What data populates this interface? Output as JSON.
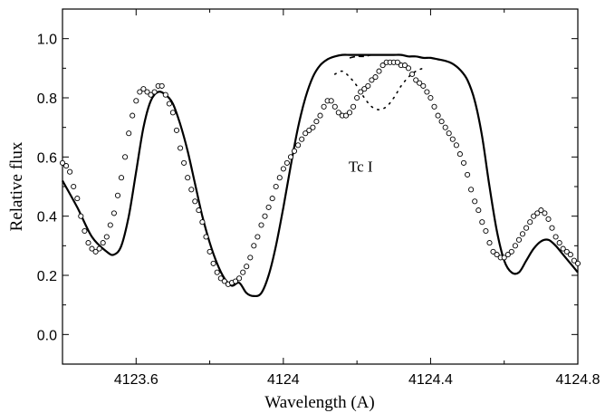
{
  "chart_data": {
    "type": "line",
    "xlabel": "Wavelength (A)",
    "ylabel": "Relative flux",
    "xlim": [
      4123.4,
      4124.8
    ],
    "ylim": [
      -0.1,
      1.1
    ],
    "x_ticks": [
      4123.6,
      4124,
      4124.4,
      4124.8
    ],
    "x_tick_labels": [
      "4123.6",
      "4124",
      "4124.4",
      "4124.8"
    ],
    "y_ticks": [
      0.0,
      0.2,
      0.4,
      0.6,
      0.8,
      1.0
    ],
    "y_tick_labels": [
      "0.0",
      "0.2",
      "0.4",
      "0.6",
      "0.8",
      "1.0"
    ],
    "grid": false,
    "annotations": [
      {
        "text": "Tc I",
        "x": 4124.21,
        "y": 0.55
      }
    ],
    "series": [
      {
        "style": "solid",
        "x": [
          4123.4,
          4123.44,
          4123.48,
          4123.52,
          4123.54,
          4123.56,
          4123.58,
          4123.6,
          4123.62,
          4123.64,
          4123.66,
          4123.68,
          4123.7,
          4123.72,
          4123.74,
          4123.76,
          4123.78,
          4123.8,
          4123.82,
          4123.84,
          4123.86,
          4123.88,
          4123.9,
          4123.92,
          4123.94,
          4123.96,
          4123.98,
          4124.0,
          4124.02,
          4124.04,
          4124.06,
          4124.08,
          4124.1,
          4124.12,
          4124.14,
          4124.16,
          4124.18,
          4124.2,
          4124.22,
          4124.24,
          4124.26,
          4124.28,
          4124.3,
          4124.32,
          4124.34,
          4124.36,
          4124.38,
          4124.4,
          4124.42,
          4124.44,
          4124.46,
          4124.48,
          4124.5,
          4124.52,
          4124.54,
          4124.56,
          4124.58,
          4124.6,
          4124.62,
          4124.64,
          4124.66,
          4124.68,
          4124.7,
          4124.72,
          4124.74,
          4124.76,
          4124.78,
          4124.8
        ],
        "y": [
          0.52,
          0.43,
          0.33,
          0.28,
          0.27,
          0.3,
          0.4,
          0.55,
          0.7,
          0.79,
          0.82,
          0.81,
          0.78,
          0.71,
          0.62,
          0.51,
          0.4,
          0.31,
          0.24,
          0.19,
          0.165,
          0.175,
          0.14,
          0.13,
          0.14,
          0.2,
          0.3,
          0.43,
          0.57,
          0.7,
          0.8,
          0.87,
          0.91,
          0.93,
          0.94,
          0.945,
          0.945,
          0.945,
          0.945,
          0.945,
          0.945,
          0.945,
          0.945,
          0.945,
          0.94,
          0.94,
          0.935,
          0.935,
          0.93,
          0.925,
          0.915,
          0.895,
          0.86,
          0.79,
          0.67,
          0.5,
          0.35,
          0.25,
          0.21,
          0.21,
          0.25,
          0.29,
          0.315,
          0.32,
          0.3,
          0.27,
          0.24,
          0.21
        ]
      },
      {
        "style": "dashed",
        "x": [
          4124.18,
          4124.2,
          4124.22,
          4124.24,
          4124.26,
          4124.28,
          4124.3,
          4124.32
        ],
        "y": [
          0.935,
          0.94,
          0.94,
          0.945,
          0.945,
          0.945,
          0.945,
          0.945
        ]
      },
      {
        "style": "dotted",
        "x": [
          4124.14,
          4124.16,
          4124.18,
          4124.2,
          4124.22,
          4124.24,
          4124.26,
          4124.28,
          4124.3,
          4124.32,
          4124.34,
          4124.36,
          4124.38
        ],
        "y": [
          0.88,
          0.89,
          0.87,
          0.84,
          0.8,
          0.77,
          0.76,
          0.77,
          0.8,
          0.84,
          0.87,
          0.89,
          0.9
        ]
      },
      {
        "style": "markers",
        "x": [
          4123.4,
          4123.41,
          4123.42,
          4123.43,
          4123.44,
          4123.45,
          4123.46,
          4123.47,
          4123.48,
          4123.49,
          4123.5,
          4123.51,
          4123.52,
          4123.53,
          4123.54,
          4123.55,
          4123.56,
          4123.57,
          4123.58,
          4123.59,
          4123.6,
          4123.61,
          4123.62,
          4123.63,
          4123.64,
          4123.65,
          4123.66,
          4123.67,
          4123.68,
          4123.69,
          4123.7,
          4123.71,
          4123.72,
          4123.73,
          4123.74,
          4123.75,
          4123.76,
          4123.77,
          4123.78,
          4123.79,
          4123.8,
          4123.81,
          4123.82,
          4123.83,
          4123.84,
          4123.85,
          4123.86,
          4123.87,
          4123.88,
          4123.89,
          4123.9,
          4123.91,
          4123.92,
          4123.93,
          4123.94,
          4123.95,
          4123.96,
          4123.97,
          4123.98,
          4123.99,
          4124.0,
          4124.01,
          4124.02,
          4124.03,
          4124.04,
          4124.05,
          4124.06,
          4124.07,
          4124.08,
          4124.09,
          4124.1,
          4124.11,
          4124.12,
          4124.13,
          4124.14,
          4124.15,
          4124.16,
          4124.17,
          4124.18,
          4124.19,
          4124.2,
          4124.21,
          4124.22,
          4124.23,
          4124.24,
          4124.25,
          4124.26,
          4124.27,
          4124.28,
          4124.29,
          4124.3,
          4124.31,
          4124.32,
          4124.33,
          4124.34,
          4124.35,
          4124.36,
          4124.37,
          4124.38,
          4124.39,
          4124.4,
          4124.41,
          4124.42,
          4124.43,
          4124.44,
          4124.45,
          4124.46,
          4124.47,
          4124.48,
          4124.49,
          4124.5,
          4124.51,
          4124.52,
          4124.53,
          4124.54,
          4124.55,
          4124.56,
          4124.57,
          4124.58,
          4124.59,
          4124.6,
          4124.61,
          4124.62,
          4124.63,
          4124.64,
          4124.65,
          4124.66,
          4124.67,
          4124.68,
          4124.69,
          4124.7,
          4124.71,
          4124.72,
          4124.73,
          4124.74,
          4124.75,
          4124.76,
          4124.77,
          4124.78,
          4124.79,
          4124.8
        ],
        "y": [
          0.58,
          0.57,
          0.55,
          0.5,
          0.46,
          0.4,
          0.35,
          0.31,
          0.29,
          0.28,
          0.29,
          0.31,
          0.33,
          0.37,
          0.41,
          0.47,
          0.53,
          0.6,
          0.68,
          0.74,
          0.79,
          0.82,
          0.83,
          0.82,
          0.81,
          0.82,
          0.84,
          0.84,
          0.81,
          0.78,
          0.75,
          0.69,
          0.63,
          0.58,
          0.53,
          0.49,
          0.45,
          0.42,
          0.38,
          0.33,
          0.28,
          0.24,
          0.21,
          0.19,
          0.18,
          0.17,
          0.175,
          0.18,
          0.19,
          0.21,
          0.23,
          0.26,
          0.3,
          0.33,
          0.37,
          0.4,
          0.43,
          0.46,
          0.5,
          0.53,
          0.56,
          0.58,
          0.6,
          0.62,
          0.64,
          0.66,
          0.68,
          0.69,
          0.7,
          0.72,
          0.74,
          0.77,
          0.79,
          0.79,
          0.77,
          0.75,
          0.74,
          0.74,
          0.75,
          0.77,
          0.8,
          0.82,
          0.83,
          0.84,
          0.86,
          0.87,
          0.89,
          0.91,
          0.92,
          0.92,
          0.92,
          0.92,
          0.91,
          0.91,
          0.9,
          0.88,
          0.86,
          0.85,
          0.84,
          0.82,
          0.8,
          0.77,
          0.74,
          0.72,
          0.7,
          0.68,
          0.66,
          0.64,
          0.61,
          0.58,
          0.54,
          0.49,
          0.45,
          0.42,
          0.38,
          0.35,
          0.31,
          0.28,
          0.27,
          0.26,
          0.26,
          0.27,
          0.28,
          0.3,
          0.32,
          0.34,
          0.36,
          0.38,
          0.4,
          0.41,
          0.42,
          0.41,
          0.39,
          0.36,
          0.33,
          0.31,
          0.29,
          0.28,
          0.27,
          0.25,
          0.24
        ]
      }
    ]
  }
}
